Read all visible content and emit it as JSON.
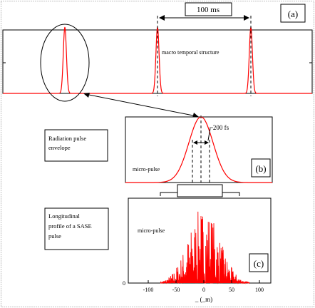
{
  "panels": {
    "a": {
      "tag": "(a)",
      "spacing_label": "100 ms",
      "caption": "macro temporal structure"
    },
    "b": {
      "tag": "(b)",
      "width_label": "~200 fs",
      "caption": "micro-pulse"
    },
    "c": {
      "tag": "(c)",
      "caption": "micro-pulse",
      "xlabel": "_ (_m)",
      "x_ticks": [
        "-100",
        "-50",
        "0",
        "50",
        "100"
      ],
      "y_ticks": [
        "0"
      ]
    }
  },
  "callouts": {
    "envelope": "Radiation pulse envelope",
    "envelope_lines": [
      "Radiation pulse",
      "envelope"
    ],
    "profile": "Longitudinal profile of a SASE pulse",
    "profile_lines": [
      "Longitudinal",
      "profile of a SASE",
      "pulse"
    ]
  },
  "colors": {
    "signal": "#ff0000",
    "frame": "#000000",
    "outline": "#808080"
  }
}
